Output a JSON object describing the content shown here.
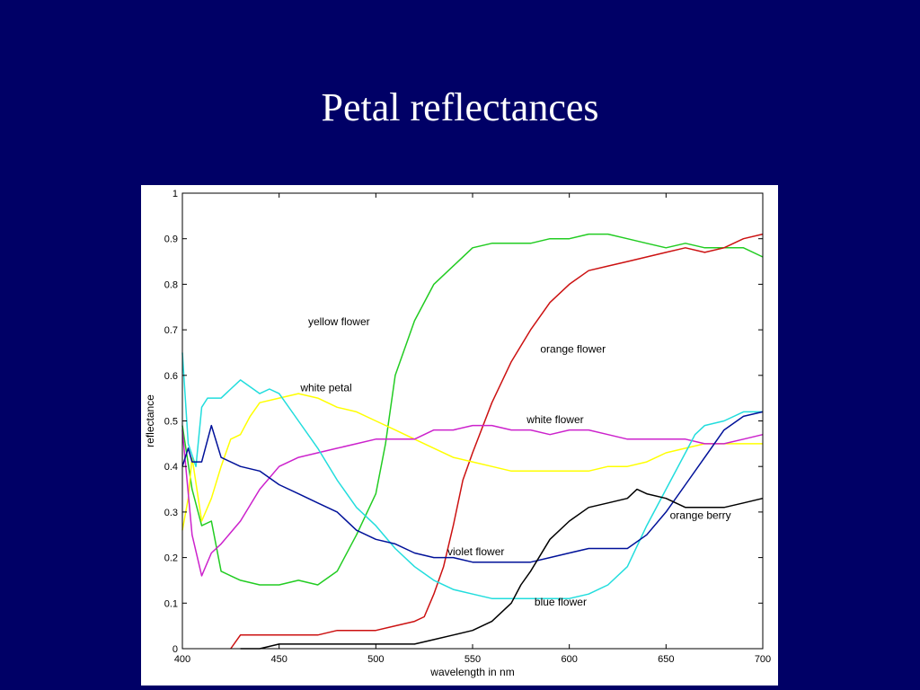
{
  "slide": {
    "title": "Petal reflectances"
  },
  "chart_data": {
    "type": "line",
    "title": "",
    "xlabel": "wavelength in nm",
    "ylabel": "reflectance",
    "xlim": [
      400,
      700
    ],
    "ylim": [
      0,
      1
    ],
    "xticks": [
      400,
      450,
      500,
      550,
      600,
      650,
      700
    ],
    "yticks": [
      0,
      0.1,
      0.2,
      0.3,
      0.4,
      0.5,
      0.6,
      0.7,
      0.8,
      0.9,
      1
    ],
    "grid": false,
    "series": [
      {
        "name": "yellow flower",
        "color": "#22cc22",
        "label_at": [
          465,
          0.71
        ],
        "x": [
          400,
          405,
          410,
          415,
          420,
          425,
          430,
          440,
          450,
          460,
          470,
          480,
          490,
          500,
          505,
          510,
          520,
          530,
          540,
          550,
          560,
          570,
          580,
          590,
          600,
          610,
          620,
          630,
          640,
          650,
          660,
          670,
          680,
          690,
          700
        ],
        "y": [
          0.49,
          0.35,
          0.27,
          0.28,
          0.17,
          0.16,
          0.15,
          0.14,
          0.14,
          0.15,
          0.14,
          0.17,
          0.25,
          0.34,
          0.45,
          0.6,
          0.72,
          0.8,
          0.84,
          0.88,
          0.89,
          0.89,
          0.89,
          0.9,
          0.9,
          0.91,
          0.91,
          0.9,
          0.89,
          0.88,
          0.89,
          0.88,
          0.88,
          0.88,
          0.86
        ]
      },
      {
        "name": "orange flower",
        "color": "#cc1111",
        "label_at": [
          585,
          0.65
        ],
        "x": [
          425,
          430,
          440,
          450,
          460,
          470,
          480,
          490,
          500,
          510,
          520,
          525,
          530,
          535,
          540,
          545,
          550,
          560,
          570,
          580,
          590,
          600,
          610,
          620,
          630,
          640,
          650,
          660,
          670,
          680,
          690,
          700
        ],
        "y": [
          0.0,
          0.03,
          0.03,
          0.03,
          0.03,
          0.03,
          0.04,
          0.04,
          0.04,
          0.05,
          0.06,
          0.07,
          0.12,
          0.18,
          0.27,
          0.37,
          0.43,
          0.54,
          0.63,
          0.7,
          0.76,
          0.8,
          0.83,
          0.84,
          0.85,
          0.86,
          0.87,
          0.88,
          0.87,
          0.88,
          0.9,
          0.91
        ]
      },
      {
        "name": "white petal",
        "color": "#ffff00",
        "label_at": [
          461,
          0.565
        ],
        "x": [
          400,
          403,
          405,
          410,
          415,
          420,
          425,
          430,
          435,
          440,
          450,
          460,
          470,
          480,
          490,
          500,
          510,
          520,
          530,
          540,
          550,
          560,
          570,
          580,
          590,
          600,
          610,
          620,
          630,
          640,
          650,
          660,
          670,
          680,
          690,
          700
        ],
        "y": [
          0.26,
          0.33,
          0.42,
          0.28,
          0.33,
          0.4,
          0.46,
          0.47,
          0.51,
          0.54,
          0.55,
          0.56,
          0.55,
          0.53,
          0.52,
          0.5,
          0.48,
          0.46,
          0.44,
          0.42,
          0.41,
          0.4,
          0.39,
          0.39,
          0.39,
          0.39,
          0.39,
          0.4,
          0.4,
          0.41,
          0.43,
          0.44,
          0.45,
          0.45,
          0.45,
          0.45
        ]
      },
      {
        "name": "white flower",
        "color": "#cc22cc",
        "label_at": [
          578,
          0.495
        ],
        "x": [
          400,
          405,
          410,
          415,
          420,
          430,
          440,
          450,
          460,
          470,
          480,
          490,
          500,
          510,
          520,
          530,
          540,
          550,
          560,
          570,
          580,
          590,
          600,
          610,
          620,
          630,
          640,
          650,
          660,
          670,
          680,
          690,
          700
        ],
        "y": [
          0.48,
          0.25,
          0.16,
          0.21,
          0.23,
          0.28,
          0.35,
          0.4,
          0.42,
          0.43,
          0.44,
          0.45,
          0.46,
          0.46,
          0.46,
          0.48,
          0.48,
          0.49,
          0.49,
          0.48,
          0.48,
          0.47,
          0.48,
          0.48,
          0.47,
          0.46,
          0.46,
          0.46,
          0.46,
          0.45,
          0.45,
          0.46,
          0.47
        ]
      },
      {
        "name": "blue flower",
        "color": "#22dddd",
        "label_at": [
          582,
          0.095
        ],
        "x": [
          400,
          403,
          407,
          410,
          413,
          420,
          425,
          430,
          440,
          445,
          450,
          460,
          470,
          480,
          490,
          500,
          510,
          520,
          530,
          540,
          550,
          560,
          570,
          580,
          590,
          600,
          610,
          620,
          630,
          640,
          650,
          660,
          665,
          670,
          680,
          690,
          700
        ],
        "y": [
          0.65,
          0.45,
          0.4,
          0.53,
          0.55,
          0.55,
          0.57,
          0.59,
          0.56,
          0.57,
          0.56,
          0.5,
          0.44,
          0.37,
          0.31,
          0.27,
          0.22,
          0.18,
          0.15,
          0.13,
          0.12,
          0.11,
          0.11,
          0.11,
          0.11,
          0.11,
          0.12,
          0.14,
          0.18,
          0.27,
          0.35,
          0.43,
          0.47,
          0.49,
          0.5,
          0.52,
          0.52
        ]
      },
      {
        "name": "violet flower",
        "color": "#001199",
        "label_at": [
          537,
          0.205
        ],
        "x": [
          400,
          403,
          405,
          410,
          415,
          420,
          430,
          440,
          450,
          460,
          470,
          480,
          490,
          500,
          510,
          520,
          530,
          540,
          550,
          560,
          570,
          580,
          590,
          600,
          610,
          620,
          630,
          640,
          650,
          660,
          670,
          680,
          690,
          700
        ],
        "y": [
          0.4,
          0.44,
          0.41,
          0.41,
          0.49,
          0.42,
          0.4,
          0.39,
          0.36,
          0.34,
          0.32,
          0.3,
          0.26,
          0.24,
          0.23,
          0.21,
          0.2,
          0.2,
          0.19,
          0.19,
          0.19,
          0.19,
          0.2,
          0.21,
          0.22,
          0.22,
          0.22,
          0.25,
          0.3,
          0.36,
          0.42,
          0.48,
          0.51,
          0.52
        ]
      },
      {
        "name": "orange berry",
        "color": "#000000",
        "label_at": [
          652,
          0.285
        ],
        "x": [
          430,
          440,
          450,
          460,
          470,
          480,
          490,
          500,
          510,
          520,
          530,
          540,
          550,
          560,
          570,
          575,
          580,
          590,
          600,
          610,
          620,
          630,
          635,
          640,
          650,
          660,
          670,
          680,
          690,
          700
        ],
        "y": [
          0.0,
          0.0,
          0.01,
          0.01,
          0.01,
          0.01,
          0.01,
          0.01,
          0.01,
          0.01,
          0.02,
          0.03,
          0.04,
          0.06,
          0.1,
          0.14,
          0.17,
          0.24,
          0.28,
          0.31,
          0.32,
          0.33,
          0.35,
          0.34,
          0.33,
          0.31,
          0.31,
          0.31,
          0.32,
          0.33
        ]
      }
    ]
  }
}
